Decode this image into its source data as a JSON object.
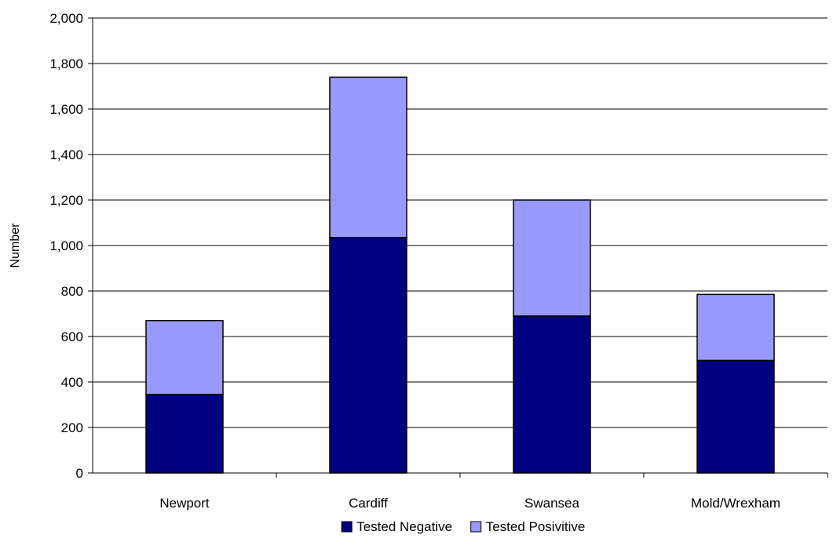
{
  "chart_data": {
    "type": "bar",
    "stacked": true,
    "categories": [
      "Newport",
      "Cardiff",
      "Swansea",
      "Mold/Wrexham"
    ],
    "series": [
      {
        "name": "Tested Negative",
        "values": [
          345,
          1035,
          690,
          495
        ],
        "color": "#000080"
      },
      {
        "name": "Tested Posivitive",
        "values": [
          325,
          705,
          510,
          290
        ],
        "color": "#9999ff"
      }
    ],
    "ylabel": "Number",
    "xlabel": "",
    "ylim": [
      0,
      2000
    ],
    "yticks": [
      "0",
      "200",
      "400",
      "600",
      "800",
      "1,000",
      "1,200",
      "1,400",
      "1,600",
      "1,800",
      "2,000"
    ],
    "grid": true,
    "legend_position": "bottom"
  }
}
